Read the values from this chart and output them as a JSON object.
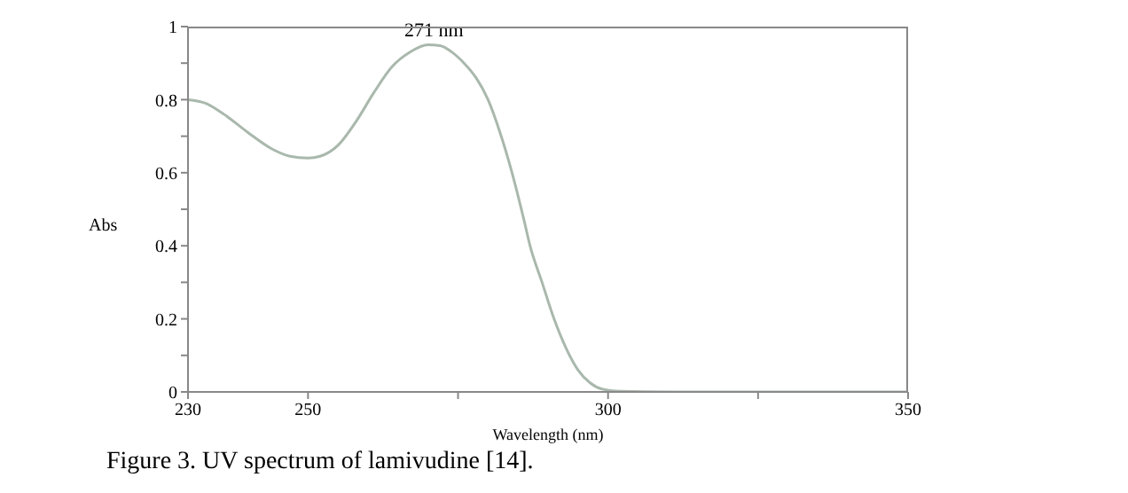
{
  "chart_data": {
    "type": "line",
    "xlabel": "Wavelength (nm)",
    "ylabel": "Abs",
    "annotations": [
      {
        "text": "271 nm",
        "x": 271,
        "y": 0.95
      },
      "Figure 3. UV spectrum of lamivudine [14]."
    ],
    "x": [
      230,
      233,
      236,
      240,
      244,
      247,
      250,
      252,
      255,
      258,
      261,
      264,
      267,
      270,
      272,
      274,
      276,
      278,
      280,
      282,
      284,
      286,
      287,
      289,
      291,
      293,
      295,
      297,
      299,
      302,
      310,
      330,
      350
    ],
    "series": [
      {
        "color": "#a9b8ac",
        "values": [
          0.8,
          0.79,
          0.76,
          0.71,
          0.665,
          0.645,
          0.64,
          0.645,
          0.675,
          0.74,
          0.82,
          0.89,
          0.93,
          0.95,
          0.948,
          0.93,
          0.9,
          0.86,
          0.8,
          0.71,
          0.6,
          0.47,
          0.4,
          0.3,
          0.2,
          0.12,
          0.06,
          0.025,
          0.008,
          0.002,
          0,
          0,
          0
        ]
      }
    ],
    "xlim": [
      230,
      350
    ],
    "xticks": [
      230,
      250,
      {
        "value": 275,
        "label": null
      },
      300,
      {
        "value": 325,
        "label": null
      },
      350
    ],
    "ylim": [
      0,
      1
    ],
    "yticks": [
      0,
      {
        "value": 0.1,
        "label": null
      },
      0.2,
      {
        "value": 0.3,
        "label": null
      },
      0.4,
      {
        "value": 0.5,
        "label": null
      },
      0.6,
      {
        "value": 0.7,
        "label": null
      },
      0.8,
      {
        "value": 0.9,
        "label": null
      },
      1
    ],
    "grid": false,
    "legend": false,
    "marker": "none",
    "line_style": "solid"
  }
}
